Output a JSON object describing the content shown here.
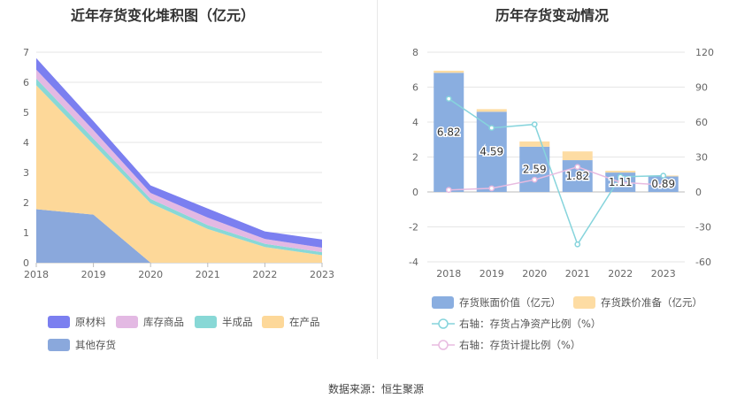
{
  "footer": {
    "source": "数据来源：恒生聚源"
  },
  "chart_data": [
    {
      "type": "area",
      "stacked": true,
      "title": "近年存货变化堆积图（亿元）",
      "x": [
        "2018",
        "2019",
        "2020",
        "2021",
        "2022",
        "2023"
      ],
      "ylim": [
        0,
        7
      ],
      "yticks": [
        "0",
        "1",
        "2",
        "3",
        "4",
        "5",
        "6",
        "7"
      ],
      "grid": true,
      "legend_position": "bottom",
      "series": [
        {
          "name": "其他存货",
          "color": "#8aa8dc",
          "values": [
            1.78,
            1.6,
            0,
            0,
            0,
            0
          ]
        },
        {
          "name": "在产品",
          "color": "#fdd899",
          "values": [
            4.12,
            2.33,
            1.98,
            1.12,
            0.52,
            0.25
          ]
        },
        {
          "name": "半成品",
          "color": "#88d8d6",
          "values": [
            0.22,
            0.2,
            0.14,
            0.13,
            0.11,
            0.1
          ]
        },
        {
          "name": "库存商品",
          "color": "#e3b9e3",
          "values": [
            0.3,
            0.28,
            0.2,
            0.25,
            0.16,
            0.15
          ]
        },
        {
          "name": "原材料",
          "color": "#7b7ff0",
          "values": [
            0.38,
            0.3,
            0.25,
            0.3,
            0.25,
            0.27
          ]
        }
      ]
    },
    {
      "type": "bar",
      "title": "历年存货变动情况",
      "categories": [
        "2018",
        "2019",
        "2020",
        "2021",
        "2022",
        "2023"
      ],
      "ylim": [
        -4,
        8
      ],
      "yticks": [
        "-4",
        "-2",
        "0",
        "2",
        "4",
        "6",
        "8"
      ],
      "y2lim": [
        -60,
        120
      ],
      "y2ticks": [
        "-60",
        "-30",
        "0",
        "30",
        "60",
        "90",
        "120"
      ],
      "legend_position": "bottom",
      "series": [
        {
          "name": "存货账面价值（亿元）",
          "kind": "bar",
          "color": "#8aaee0",
          "values": [
            6.82,
            4.59,
            2.59,
            1.82,
            1.11,
            0.89
          ],
          "labels": [
            "6.82",
            "4.59",
            "2.59",
            "1.82",
            "1.11",
            "0.89"
          ]
        },
        {
          "name": "存货跌价准备（亿元）",
          "kind": "bar",
          "color": "#fddca3",
          "values": [
            0.12,
            0.15,
            0.3,
            0.5,
            0.1,
            0.05
          ]
        },
        {
          "name": "右轴：存货占净资产比例（%）",
          "kind": "line",
          "axis": "right",
          "color": "#86d4dc",
          "values": [
            80,
            55,
            58,
            -45,
            13,
            14
          ]
        },
        {
          "name": "右轴：存货计提比例（%）",
          "kind": "line",
          "axis": "right",
          "color": "#e8bbe0",
          "values": [
            1.7,
            3.1,
            10.5,
            21.5,
            8.3,
            6
          ]
        }
      ]
    }
  ]
}
